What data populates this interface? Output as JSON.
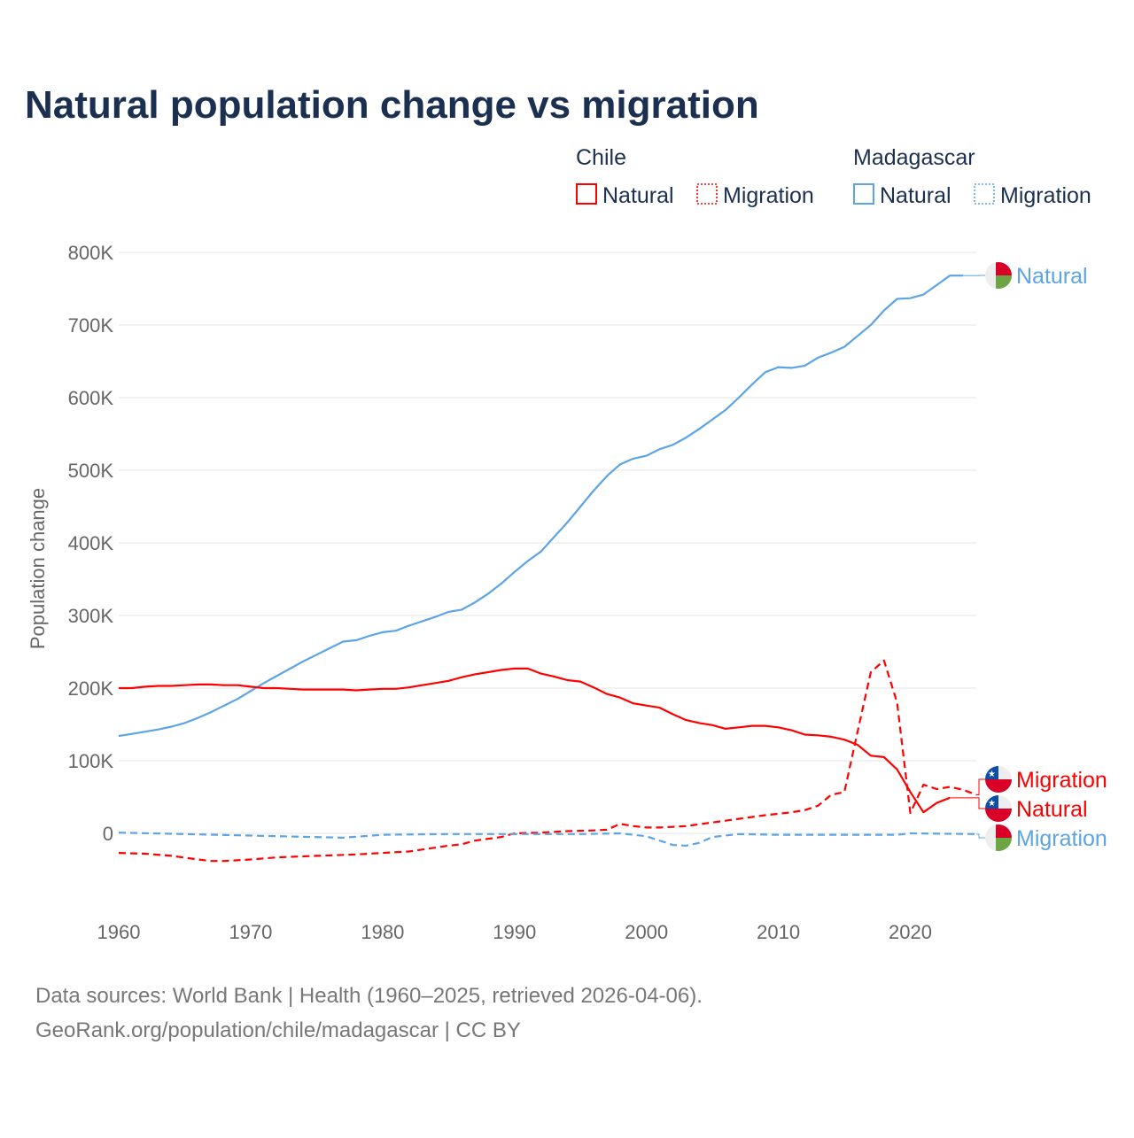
{
  "chart_data": {
    "type": "line",
    "title": "Natural population change vs migration",
    "ylabel": "Population change",
    "xlabel": "",
    "xlim": [
      1960,
      2025
    ],
    "ylim": [
      -100000,
      800000
    ],
    "grid": true,
    "x_ticks": [
      "1960",
      "1970",
      "1980",
      "1990",
      "2000",
      "2010",
      "2020"
    ],
    "y_ticks": [
      {
        "v": 0,
        "label": "0"
      },
      {
        "v": 100000,
        "label": "100K"
      },
      {
        "v": 200000,
        "label": "200K"
      },
      {
        "v": 300000,
        "label": "300K"
      },
      {
        "v": 400000,
        "label": "400K"
      },
      {
        "v": 500000,
        "label": "500K"
      },
      {
        "v": 600000,
        "label": "600K"
      },
      {
        "v": 700000,
        "label": "700K"
      },
      {
        "v": 800000,
        "label": "800K"
      }
    ],
    "legend": {
      "placement": "top-right",
      "groups": [
        {
          "title": "Chile",
          "items": [
            "Natural",
            "Migration"
          ]
        },
        {
          "title": "Madagascar",
          "items": [
            "Natural",
            "Migration"
          ]
        }
      ]
    },
    "series": [
      {
        "name": "Madagascar Natural",
        "country": "Madagascar",
        "kind": "Natural",
        "color": "#5ba4e6",
        "dash": false,
        "end_label": "Natural",
        "x": [
          1960,
          1961,
          1962,
          1963,
          1964,
          1965,
          1966,
          1967,
          1968,
          1969,
          1970,
          1971,
          1972,
          1973,
          1974,
          1975,
          1976,
          1977,
          1978,
          1979,
          1980,
          1981,
          1982,
          1983,
          1984,
          1985,
          1986,
          1987,
          1988,
          1989,
          1990,
          1991,
          1992,
          1993,
          1994,
          1995,
          1996,
          1997,
          1998,
          1999,
          2000,
          2001,
          2002,
          2003,
          2004,
          2005,
          2006,
          2007,
          2008,
          2009,
          2010,
          2011,
          2012,
          2013,
          2014,
          2015,
          2016,
          2017,
          2018,
          2019,
          2020,
          2021,
          2022,
          2023,
          2024
        ],
        "y": [
          134000,
          137000,
          140000,
          143000,
          147000,
          152000,
          159000,
          167000,
          176000,
          185000,
          196000,
          207000,
          217000,
          227000,
          237000,
          246000,
          255000,
          264000,
          266000,
          272000,
          277000,
          279000,
          286000,
          292000,
          298000,
          305000,
          308000,
          318000,
          330000,
          344000,
          360000,
          375000,
          388000,
          408000,
          428000,
          450000,
          472000,
          492000,
          508000,
          516000,
          520000,
          529000,
          535000,
          545000,
          557000,
          570000,
          583000,
          600000,
          618000,
          635000,
          642000,
          641000,
          644000,
          655000,
          662000,
          670000,
          685000,
          700000,
          720000,
          736000,
          737000,
          742000,
          755000,
          768000,
          768000
        ]
      },
      {
        "name": "Chile Natural",
        "country": "Chile",
        "kind": "Natural",
        "color": "#ff0000",
        "dash": false,
        "end_label": "Natural",
        "x": [
          1960,
          1961,
          1962,
          1963,
          1964,
          1965,
          1966,
          1967,
          1968,
          1969,
          1970,
          1971,
          1972,
          1973,
          1974,
          1975,
          1976,
          1977,
          1978,
          1979,
          1980,
          1981,
          1982,
          1983,
          1984,
          1985,
          1986,
          1987,
          1988,
          1989,
          1990,
          1991,
          1992,
          1993,
          1994,
          1995,
          1996,
          1997,
          1998,
          1999,
          2000,
          2001,
          2002,
          2003,
          2004,
          2005,
          2006,
          2007,
          2008,
          2009,
          2010,
          2011,
          2012,
          2013,
          2014,
          2015,
          2016,
          2017,
          2018,
          2019,
          2020,
          2021,
          2022,
          2023
        ],
        "y": [
          200000,
          200000,
          202000,
          203000,
          203000,
          204000,
          205000,
          205000,
          204000,
          204000,
          202000,
          200000,
          200000,
          199000,
          198000,
          198000,
          198000,
          198000,
          197000,
          198000,
          199000,
          199000,
          201000,
          204000,
          207000,
          210000,
          215000,
          219000,
          222000,
          225000,
          227000,
          227000,
          220000,
          216000,
          211000,
          209000,
          201000,
          192000,
          187000,
          179000,
          176000,
          173000,
          164000,
          156000,
          152000,
          149000,
          144000,
          146000,
          148000,
          148000,
          146000,
          142000,
          136000,
          135000,
          133000,
          129000,
          122000,
          107000,
          105000,
          88000,
          57000,
          29000,
          42000,
          49000
        ]
      },
      {
        "name": "Chile Migration",
        "country": "Chile",
        "kind": "Migration",
        "color": "#ff0000",
        "dash": true,
        "end_label": "Migration",
        "x": [
          1960,
          1962,
          1964,
          1966,
          1967,
          1968,
          1970,
          1972,
          1975,
          1978,
          1980,
          1982,
          1985,
          1986,
          1987,
          1989,
          1990,
          1992,
          1994,
          1996,
          1997,
          1998,
          1999,
          2000,
          2001,
          2002,
          2003,
          2005,
          2007,
          2009,
          2011,
          2012,
          2013,
          2014,
          2015,
          2016,
          2017,
          2018,
          2019,
          2020,
          2021,
          2022,
          2023,
          2024,
          2025
        ],
        "y": [
          -27000,
          -28000,
          -31000,
          -36000,
          -38000,
          -38000,
          -36000,
          -33000,
          -31000,
          -29000,
          -27000,
          -25000,
          -17000,
          -15000,
          -10000,
          -5000,
          0,
          1000,
          3000,
          4000,
          5000,
          13000,
          10000,
          8000,
          8000,
          9000,
          10000,
          15000,
          20000,
          25000,
          29000,
          32000,
          38000,
          53000,
          57000,
          140000,
          222000,
          238000,
          180000,
          28000,
          67000,
          61000,
          64000,
          60000,
          53000
        ]
      },
      {
        "name": "Madagascar Migration",
        "country": "Madagascar",
        "kind": "Migration",
        "color": "#5ba4e6",
        "dash": true,
        "end_label": "Migration",
        "x": [
          1960,
          1965,
          1970,
          1977,
          1980,
          1985,
          1995,
          1998,
          2000,
          2002,
          2003,
          2004,
          2005,
          2007,
          2010,
          2015,
          2019,
          2020,
          2025
        ],
        "y": [
          1000,
          -1000,
          -3000,
          -6000,
          -2000,
          -1000,
          -1000,
          0,
          -4000,
          -16000,
          -17000,
          -13000,
          -5000,
          -1000,
          -2000,
          -2000,
          -2000,
          0,
          -1000
        ]
      }
    ],
    "footer": [
      "Data sources: World Bank | Health (1960–2025, retrieved 2026-04-06).",
      "GeoRank.org/population/chile/madagascar | CC BY"
    ]
  }
}
